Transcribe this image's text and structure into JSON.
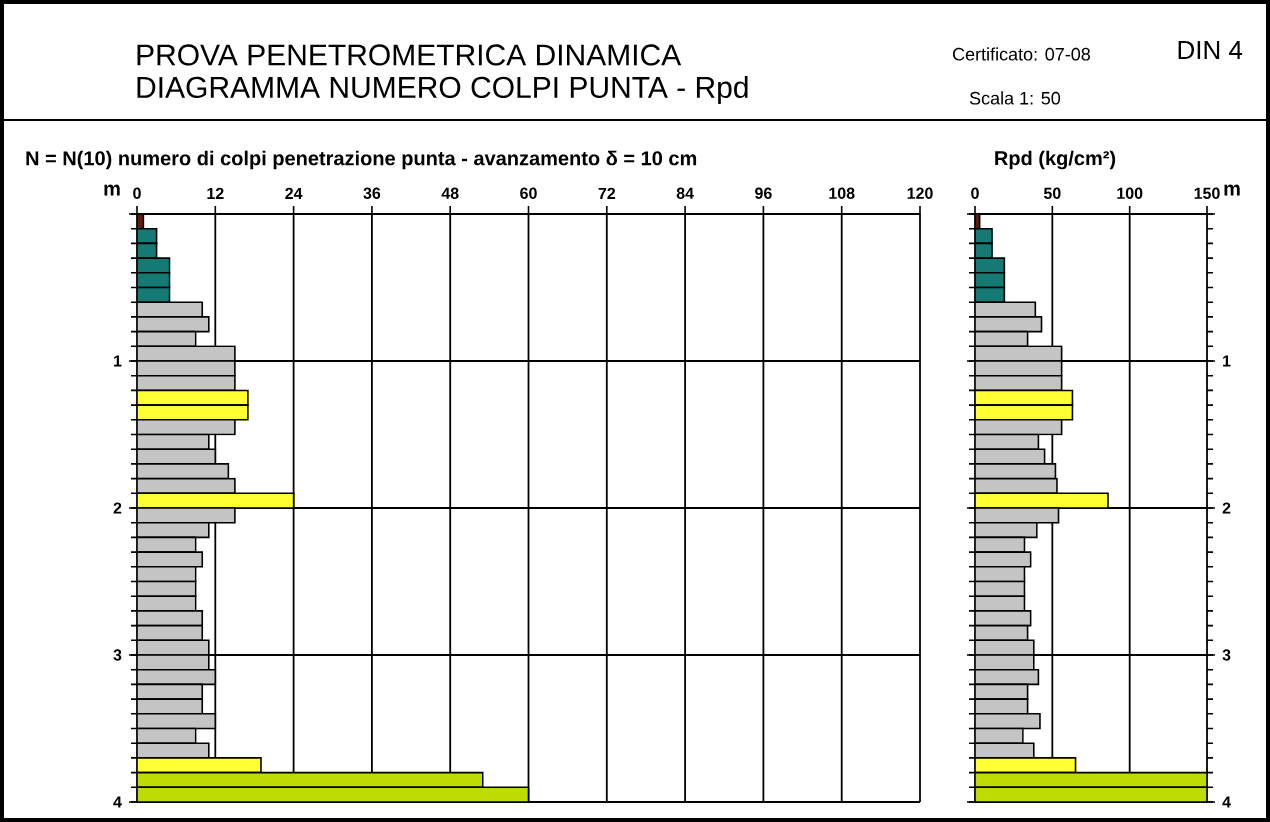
{
  "chart_data": [
    {
      "type": "histogram",
      "orientation": "horizontal",
      "title": "PROVA PENETROMETRICA DINAMICA",
      "subtitle": "DIAGRAMMA NUMERO COLPI PUNTA - Rpd",
      "xlabel": "N = N(10)  numero di colpi penetrazione punta  -  avanzamento  δ =  10 cm",
      "ylabel": "m",
      "annotations": [
        "Certificato: 07-08",
        "DIN 4",
        "Scala 1: 50"
      ],
      "bins": [
        0,
        0.1,
        0.2,
        0.3,
        0.4,
        0.5,
        0.6,
        0.7,
        0.8,
        0.9,
        1.0,
        1.1,
        1.2,
        1.3,
        1.4,
        1.5,
        1.6,
        1.7,
        1.8,
        1.9,
        2.0,
        2.1,
        2.2,
        2.3,
        2.4,
        2.5,
        2.6,
        2.7,
        2.8,
        2.9,
        3.0,
        3.1,
        3.2,
        3.3,
        3.4,
        3.5,
        3.6,
        3.7,
        3.8,
        3.9,
        4.0
      ],
      "values": [
        1,
        3,
        3,
        5,
        5,
        5,
        10,
        11,
        9,
        15,
        15,
        15,
        17,
        17,
        15,
        11,
        12,
        14,
        15,
        24,
        15,
        11,
        9,
        10,
        9,
        9,
        9,
        10,
        10,
        11,
        11,
        12,
        10,
        10,
        12,
        9,
        11,
        19,
        53,
        60
      ],
      "colors": [
        "#5a1e0e",
        "#157a73",
        "#157a73",
        "#157a73",
        "#157a73",
        "#157a73",
        "#c4c4c4",
        "#c4c4c4",
        "#c4c4c4",
        "#c4c4c4",
        "#c4c4c4",
        "#c4c4c4",
        "#ffff33",
        "#ffff33",
        "#c4c4c4",
        "#c4c4c4",
        "#c4c4c4",
        "#c4c4c4",
        "#c4c4c4",
        "#ffff33",
        "#c4c4c4",
        "#c4c4c4",
        "#c4c4c4",
        "#c4c4c4",
        "#c4c4c4",
        "#c4c4c4",
        "#c4c4c4",
        "#c4c4c4",
        "#c4c4c4",
        "#c4c4c4",
        "#c4c4c4",
        "#c4c4c4",
        "#c4c4c4",
        "#c4c4c4",
        "#c4c4c4",
        "#c4c4c4",
        "#c4c4c4",
        "#ffff33",
        "#bfdc00",
        "#bfdc00"
      ],
      "xlim": [
        0,
        120
      ],
      "xticks": [
        0,
        12,
        24,
        36,
        48,
        60,
        72,
        84,
        96,
        108,
        120
      ],
      "ylim": [
        4,
        0
      ],
      "yticks": [
        {
          "value": 0,
          "label": null
        },
        1,
        2,
        3,
        4
      ],
      "grid": true
    },
    {
      "type": "histogram",
      "orientation": "horizontal",
      "xlabel": "Rpd (kg/cm²)",
      "ylabel": "m",
      "bins": [
        0,
        0.1,
        0.2,
        0.3,
        0.4,
        0.5,
        0.6,
        0.7,
        0.8,
        0.9,
        1.0,
        1.1,
        1.2,
        1.3,
        1.4,
        1.5,
        1.6,
        1.7,
        1.8,
        1.9,
        2.0,
        2.1,
        2.2,
        2.3,
        2.4,
        2.5,
        2.6,
        2.7,
        2.8,
        2.9,
        3.0,
        3.1,
        3.2,
        3.3,
        3.4,
        3.5,
        3.6,
        3.7,
        3.8,
        3.9,
        4.0
      ],
      "values": [
        3,
        11,
        11,
        19,
        19,
        19,
        39,
        43,
        34,
        56,
        56,
        56,
        63,
        63,
        56,
        41,
        45,
        52,
        53,
        86,
        54,
        40,
        32,
        36,
        32,
        32,
        32,
        36,
        34,
        38,
        38,
        41,
        34,
        34,
        42,
        31,
        38,
        65,
        150,
        150
      ],
      "colors": [
        "#5a1e0e",
        "#157a73",
        "#157a73",
        "#157a73",
        "#157a73",
        "#157a73",
        "#c4c4c4",
        "#c4c4c4",
        "#c4c4c4",
        "#c4c4c4",
        "#c4c4c4",
        "#c4c4c4",
        "#ffff33",
        "#ffff33",
        "#c4c4c4",
        "#c4c4c4",
        "#c4c4c4",
        "#c4c4c4",
        "#c4c4c4",
        "#ffff33",
        "#c4c4c4",
        "#c4c4c4",
        "#c4c4c4",
        "#c4c4c4",
        "#c4c4c4",
        "#c4c4c4",
        "#c4c4c4",
        "#c4c4c4",
        "#c4c4c4",
        "#c4c4c4",
        "#c4c4c4",
        "#c4c4c4",
        "#c4c4c4",
        "#c4c4c4",
        "#c4c4c4",
        "#c4c4c4",
        "#c4c4c4",
        "#ffff33",
        "#bfdc00",
        "#bfdc00"
      ],
      "xlim": [
        0,
        150
      ],
      "xticks": [
        0,
        50,
        100,
        150
      ],
      "ylim": [
        4,
        0
      ],
      "yticks": [
        {
          "value": 0,
          "label": null
        },
        1,
        2,
        3,
        4
      ],
      "grid": true
    }
  ]
}
